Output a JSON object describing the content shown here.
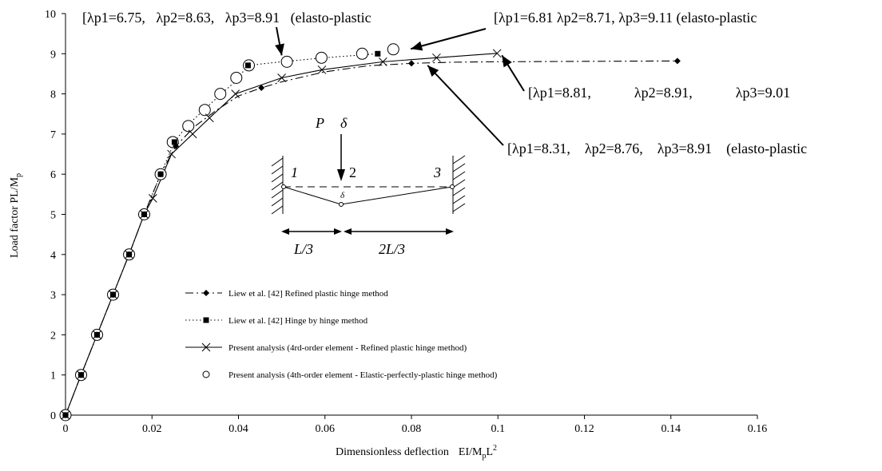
{
  "chart_data": {
    "type": "line",
    "xlabel": "Dimensionless deflection",
    "xlabel_formula": {
      "base": "EI/M",
      "sub": "p",
      "mid": "L",
      "sup": "2"
    },
    "ylabel": {
      "base": "Load factor PL/M",
      "sub": "p"
    },
    "xlim": [
      0,
      0.16
    ],
    "ylim": [
      0,
      10
    ],
    "xticks": [
      0,
      0.02,
      0.04,
      0.06,
      0.08,
      0.1,
      0.12,
      0.14,
      0.16
    ],
    "xtick_labels": [
      "0",
      "0.02",
      "0.04",
      "0.06",
      "0.08",
      "0.1",
      "0.12",
      "0.14",
      "0.16"
    ],
    "yticks": [
      0,
      1,
      2,
      3,
      4,
      5,
      6,
      7,
      8,
      9,
      10
    ],
    "ytick_labels": [
      "0",
      "1",
      "2",
      "3",
      "4",
      "5",
      "6",
      "7",
      "8",
      "9",
      "10"
    ],
    "grid": false,
    "legend_position": "lower-left inside plot",
    "series": [
      {
        "name": "Liew et al. [42] Refined plastic hinge method",
        "line": "dash-dot",
        "marker": "diamond",
        "x": [
          0,
          0.0036,
          0.0073,
          0.011,
          0.0147,
          0.0182,
          0.022,
          0.0255,
          0.03,
          0.035,
          0.04,
          0.0453,
          0.05,
          0.06,
          0.07,
          0.08,
          0.09,
          0.1,
          0.12,
          0.1415
        ],
        "y": [
          0,
          1,
          2,
          3,
          4,
          5,
          6,
          6.7,
          7.2,
          7.6,
          7.95,
          8.15,
          8.3,
          8.55,
          8.7,
          8.76,
          8.79,
          8.8,
          8.81,
          8.82
        ],
        "marker_x": [
          0,
          0.0036,
          0.0073,
          0.011,
          0.0147,
          0.0182,
          0.022,
          0.0255,
          0.0453,
          0.08,
          0.1415
        ],
        "marker_y": [
          0,
          1,
          2,
          3,
          4,
          5,
          6,
          6.7,
          8.15,
          8.76,
          8.82
        ]
      },
      {
        "name": "Liew et al. [42] Hinge by hinge method",
        "line": "dotted",
        "marker": "square",
        "x": [
          0,
          0.0036,
          0.0073,
          0.011,
          0.0147,
          0.0182,
          0.022,
          0.0252,
          0.028,
          0.032,
          0.036,
          0.0392,
          0.0422,
          0.05,
          0.06,
          0.0722
        ],
        "y": [
          0,
          1,
          2,
          3,
          4,
          5,
          6,
          6.8,
          7.2,
          7.6,
          8.0,
          8.3,
          8.71,
          8.8,
          8.9,
          9.0
        ],
        "marker_x": [
          0,
          0.0036,
          0.0073,
          0.011,
          0.0147,
          0.0182,
          0.022,
          0.0252,
          0.0422,
          0.0722
        ],
        "marker_y": [
          0,
          1,
          2,
          3,
          4,
          5,
          6,
          6.8,
          8.71,
          9.0
        ]
      },
      {
        "name": "Present analysis (4rd-order element - Refined plastic hinge method)",
        "line": "solid",
        "marker": "x",
        "x": [
          0,
          0.0036,
          0.0073,
          0.011,
          0.0147,
          0.0182,
          0.0202,
          0.0245,
          0.0294,
          0.0333,
          0.0393,
          0.05,
          0.0593,
          0.0734,
          0.0858,
          0.0998
        ],
        "y": [
          0,
          1,
          2,
          3,
          4,
          5,
          5.4,
          6.5,
          7.0,
          7.4,
          8.0,
          8.4,
          8.6,
          8.8,
          8.9,
          9.01
        ]
      },
      {
        "name": "Present analysis (4th-order element - Elastic-perfectly-plastic hinge method)",
        "line": "none",
        "marker": "circle",
        "x": [
          0,
          0.0036,
          0.0073,
          0.011,
          0.0147,
          0.0182,
          0.022,
          0.0248,
          0.0284,
          0.0322,
          0.0358,
          0.0395,
          0.0424,
          0.0512,
          0.0592,
          0.0686,
          0.0758
        ],
        "y": [
          0,
          1,
          2,
          3,
          4,
          5,
          6,
          6.8,
          7.2,
          7.6,
          8.0,
          8.4,
          8.71,
          8.8,
          8.9,
          9.0,
          9.11
        ]
      }
    ],
    "annotations": [
      {
        "text": "[λp1=6.75,   λp2=8.63,   λp3=8.91   (elasto-plastic",
        "arrow_to": [
          0.05,
          8.8
        ]
      },
      {
        "text": "[λp1=6.81 λp2=8.71, λp3=9.11 (elasto-plastic",
        "arrow_to": [
          0.078,
          9.2
        ]
      },
      {
        "text": "[λp1=8.81,            λp2=8.91,            λp3=9.01",
        "arrow_to": [
          0.1,
          9.0
        ]
      },
      {
        "text": "[λp1=8.31,    λp2=8.76,    λp3=8.91    (elasto-plastic",
        "arrow_to": [
          0.083,
          8.75
        ]
      }
    ],
    "inset": {
      "load": "P",
      "delta_top": "δ",
      "delta_small": "δ",
      "node1": "1",
      "node2": "2",
      "node3": "3",
      "span_left": "L/3",
      "span_right": "2L/3"
    }
  }
}
